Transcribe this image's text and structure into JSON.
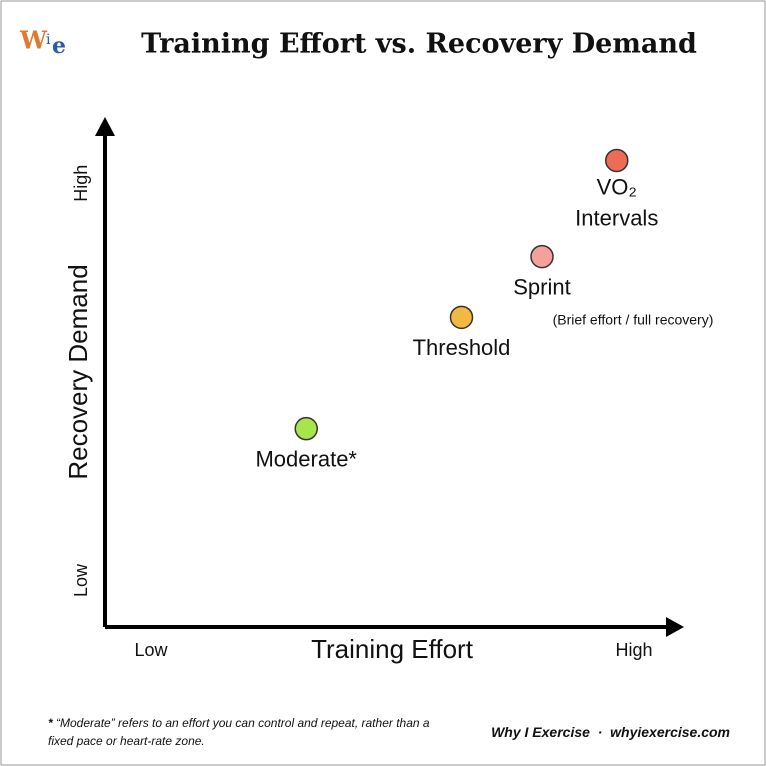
{
  "logo": [
    "W",
    "i",
    "e"
  ],
  "chart_data": {
    "type": "scatter",
    "title": "Training Effort vs. Recovery Demand",
    "x_label": "Training Effort",
    "y_label": "Recovery Demand",
    "xlim": [
      0,
      10
    ],
    "ylim": [
      0,
      10
    ],
    "xticks": [
      {
        "value": 0.8,
        "label": "Low"
      },
      {
        "value": 9.2,
        "label": "High"
      }
    ],
    "yticks": [
      {
        "value": 0.9,
        "label": "Low"
      },
      {
        "value": 8.75,
        "label": "High"
      }
    ],
    "x": [
      3.5,
      6.2,
      7.6,
      8.9
    ],
    "y": [
      3.9,
      6.1,
      7.3,
      9.2
    ],
    "labels": [
      [
        "Moderate*"
      ],
      [
        "Threshold"
      ],
      [
        "Sprint"
      ],
      [
        "VO₂",
        "Intervals"
      ]
    ],
    "colors": [
      "#a6e64a",
      "#f2b840",
      "#f4a19b",
      "#ee6b56"
    ],
    "annotation": "(Brief effort / full recovery)",
    "footnote": {
      "mark": "*",
      "text": "“Moderate” refers to an effort you can control and repeat, rather than a fixed pace or heart-rate zone."
    },
    "credit": [
      "Why I Exercise",
      "·",
      "whyiexercise.com"
    ]
  }
}
